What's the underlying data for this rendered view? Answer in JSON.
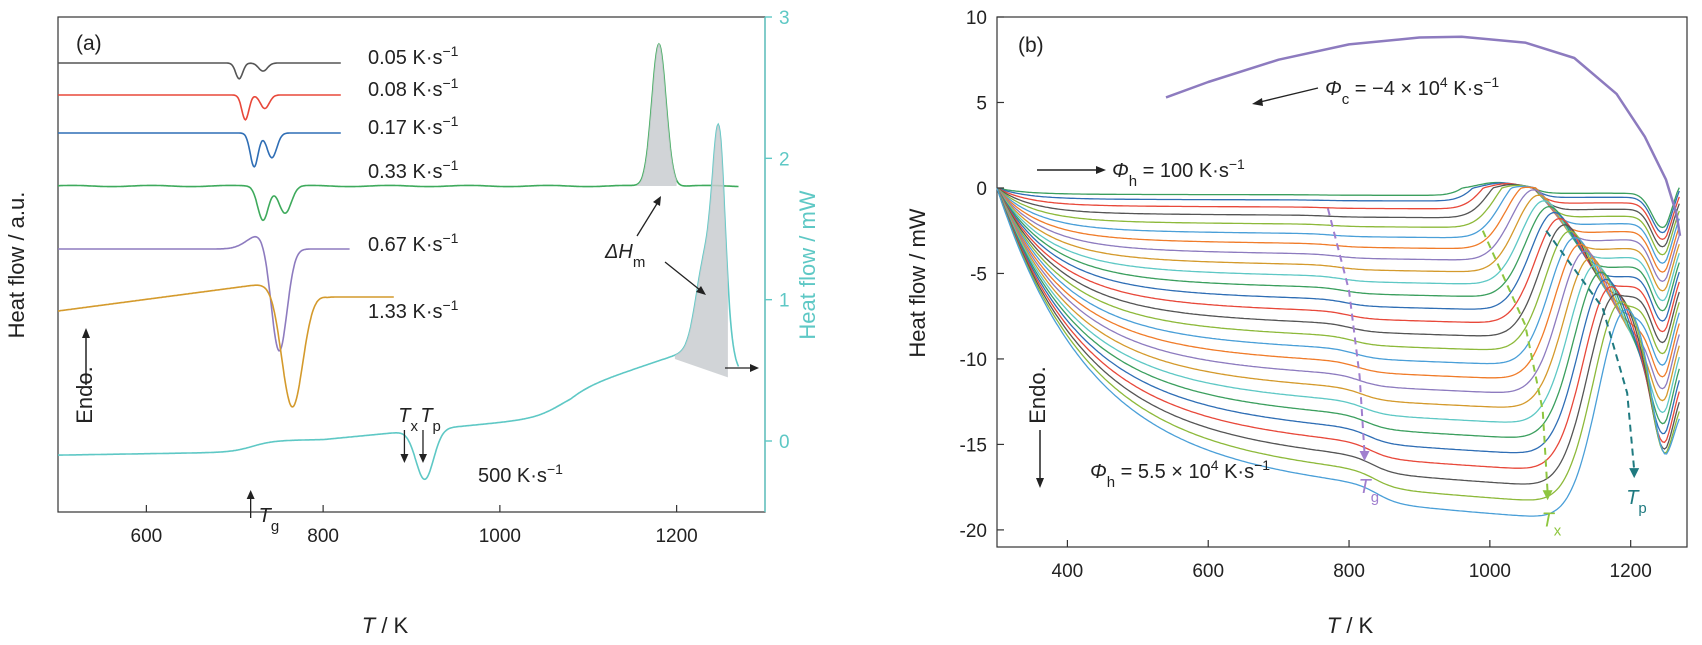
{
  "chart_data": [
    {
      "panel_label": "(a)",
      "type": "line",
      "xlabel_var": "T",
      "xlabel_unit": " / K",
      "xlim": [
        500,
        1300
      ],
      "xticks": [
        600,
        800,
        1000,
        1200
      ],
      "ylabel": "Heat flow / a.u.",
      "y2label": "Heat flow / mW",
      "y2lim": [
        -0.5,
        3
      ],
      "y2ticks": [
        0,
        1,
        2,
        3
      ],
      "y2_color": "#5ec8c5",
      "endo_label": "Endo.",
      "series": [
        {
          "label": "0.05 K·s",
          "label_sup": "−1",
          "color": "#555555",
          "baseline": 1,
          "x_start": 500,
          "x_end": 820,
          "peaks": [
            {
              "x": 705,
              "depth": 0.35,
              "width": 4
            },
            {
              "x": 732,
              "depth": 0.18,
              "width": 5
            }
          ]
        },
        {
          "label": "0.08 K·s",
          "label_sup": "−1",
          "color": "#e8483a",
          "baseline": 2,
          "x_start": 500,
          "x_end": 820,
          "peaks": [
            {
              "x": 712,
              "depth": 0.55,
              "width": 4
            },
            {
              "x": 734,
              "depth": 0.3,
              "width": 5
            }
          ]
        },
        {
          "label": "0.17 K·s",
          "label_sup": "−1",
          "color": "#2f6eb5",
          "baseline": 3,
          "x_start": 500,
          "x_end": 820,
          "peaks": [
            {
              "x": 722,
              "depth": 0.75,
              "width": 4.5
            },
            {
              "x": 742,
              "depth": 0.55,
              "width": 5.5
            }
          ]
        },
        {
          "label": "0.33 K·s",
          "label_sup": "−1",
          "color": "#3eaa5c",
          "baseline": 4,
          "x_start": 500,
          "x_end": 1270,
          "peaks": [
            {
              "x": 732,
              "depth": 0.75,
              "width": 6
            },
            {
              "x": 757,
              "depth": 0.6,
              "width": 7
            }
          ],
          "melting_peak": {
            "x": 1180,
            "height": 2.3,
            "width": 8
          }
        },
        {
          "label": "0.67 K·s",
          "label_sup": "−1",
          "color": "#8d7bbf",
          "baseline": 5,
          "x_start": 500,
          "x_end": 830,
          "peaks": [
            {
              "x": 750,
              "depth": 2.4,
              "width": 9
            }
          ]
        },
        {
          "label": "1.33 K·s",
          "label_sup": "−1",
          "color": "#d49a2c",
          "baseline": 6,
          "x_start": 500,
          "x_end": 880,
          "peaks": [
            {
              "x": 765,
              "depth": 2.65,
              "width": 12
            }
          ]
        },
        {
          "label": "500 K·s",
          "label_sup": "−1",
          "color": "#5ec8c5",
          "baseline": 7,
          "x_start": 500,
          "x_end": 1270
        }
      ],
      "annotations": {
        "dHm": "ΔH",
        "dHm_sub": "m",
        "Tg": "T",
        "Tg_sub": "g",
        "Tx": "T",
        "Tx_sub": "x",
        "Tp": "T",
        "Tp_sub": "p"
      }
    },
    {
      "panel_label": "(b)",
      "type": "line",
      "xlabel_var": "T",
      "xlabel_unit": " / K",
      "xlim": [
        300,
        1280
      ],
      "xticks": [
        400,
        600,
        800,
        1000,
        1200
      ],
      "ylabel": "Heat flow / mW",
      "ylim": [
        -21,
        10
      ],
      "yticks": [
        10,
        5,
        0,
        -5,
        -10,
        -15,
        -20
      ],
      "endo_label": "Endo.",
      "cooling_label": "Φ",
      "cooling_label_sub": "c",
      "cooling_label_rest": " = −4 × 10",
      "cooling_label_exp": "4",
      "cooling_label_unit": " K·s",
      "cooling_label_unit_sup": "−1",
      "heat_low_label": "Φ",
      "heat_low_sub": "h",
      "heat_low_rest": " = 100 K·s",
      "heat_low_sup": "−1",
      "heat_high_label": "Φ",
      "heat_high_sub": "h",
      "heat_high_rest": " = 5.5 × 10",
      "heat_high_exp": "4",
      "heat_high_unit": " K·s",
      "heat_high_unit_sup": "−1",
      "cooling_curve": {
        "color": "#8d7bbf",
        "points": [
          [
            540,
            5.3
          ],
          [
            600,
            6.2
          ],
          [
            700,
            7.5
          ],
          [
            800,
            8.4
          ],
          [
            900,
            8.8
          ],
          [
            960,
            8.85
          ],
          [
            1050,
            8.5
          ],
          [
            1120,
            7.6
          ],
          [
            1180,
            5.5
          ],
          [
            1220,
            3.0
          ],
          [
            1250,
            0.5
          ],
          [
            1265,
            -1.5
          ],
          [
            1270,
            -2.8
          ]
        ]
      },
      "heating_series": {
        "count": 26,
        "colors": [
          "#3b9f5e",
          "#2f6eb5",
          "#e8483a",
          "#555555",
          "#8db93a",
          "#4a9fd8",
          "#f07c2a",
          "#8d7bbf",
          "#d49a2c",
          "#5ec8c5"
        ],
        "start_x": 300,
        "end_x": 1270,
        "min_level": -17.5,
        "max_level": -0.4
      },
      "markers": {
        "Tg": "T",
        "Tg_sub": "g",
        "Tg_color": "#a07fcf",
        "Tx": "T",
        "Tx_sub": "x",
        "Tx_color": "#8ec63f",
        "Tp": "T",
        "Tp_sub": "p",
        "Tp_color": "#1f7a80"
      }
    }
  ]
}
